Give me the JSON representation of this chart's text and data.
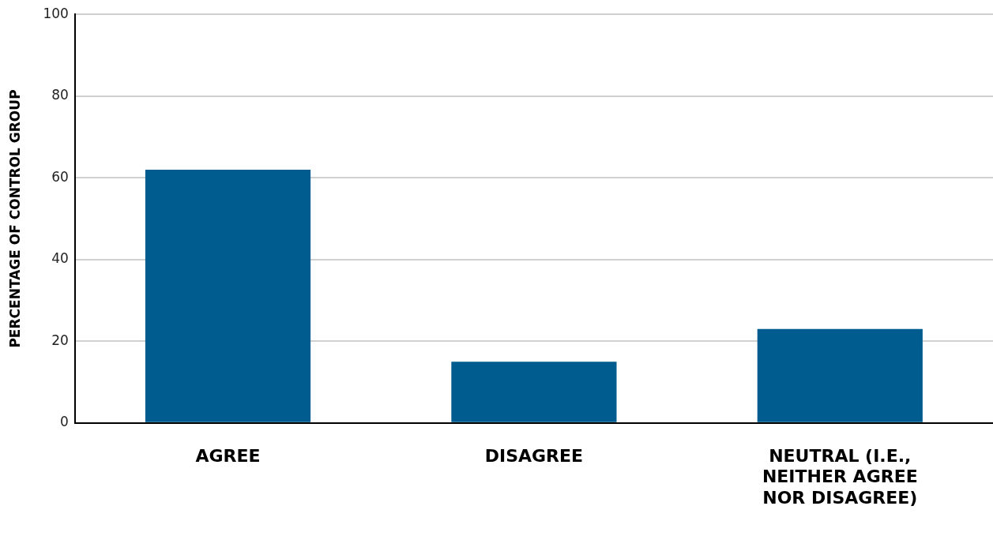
{
  "chart_data": {
    "type": "bar",
    "ylabel": "PERCENTAGE OF CONTROL GROUP",
    "categories": [
      "AGREE",
      "DISAGREE",
      "NEUTRAL (I.E., NEITHER AGREE NOR DISAGREE)"
    ],
    "values": [
      62,
      15,
      23
    ],
    "color": "#005b8e",
    "ylim": [
      0,
      100
    ],
    "yticks": [
      0,
      20,
      40,
      60,
      80,
      100
    ],
    "grid": "y",
    "legend": false
  }
}
